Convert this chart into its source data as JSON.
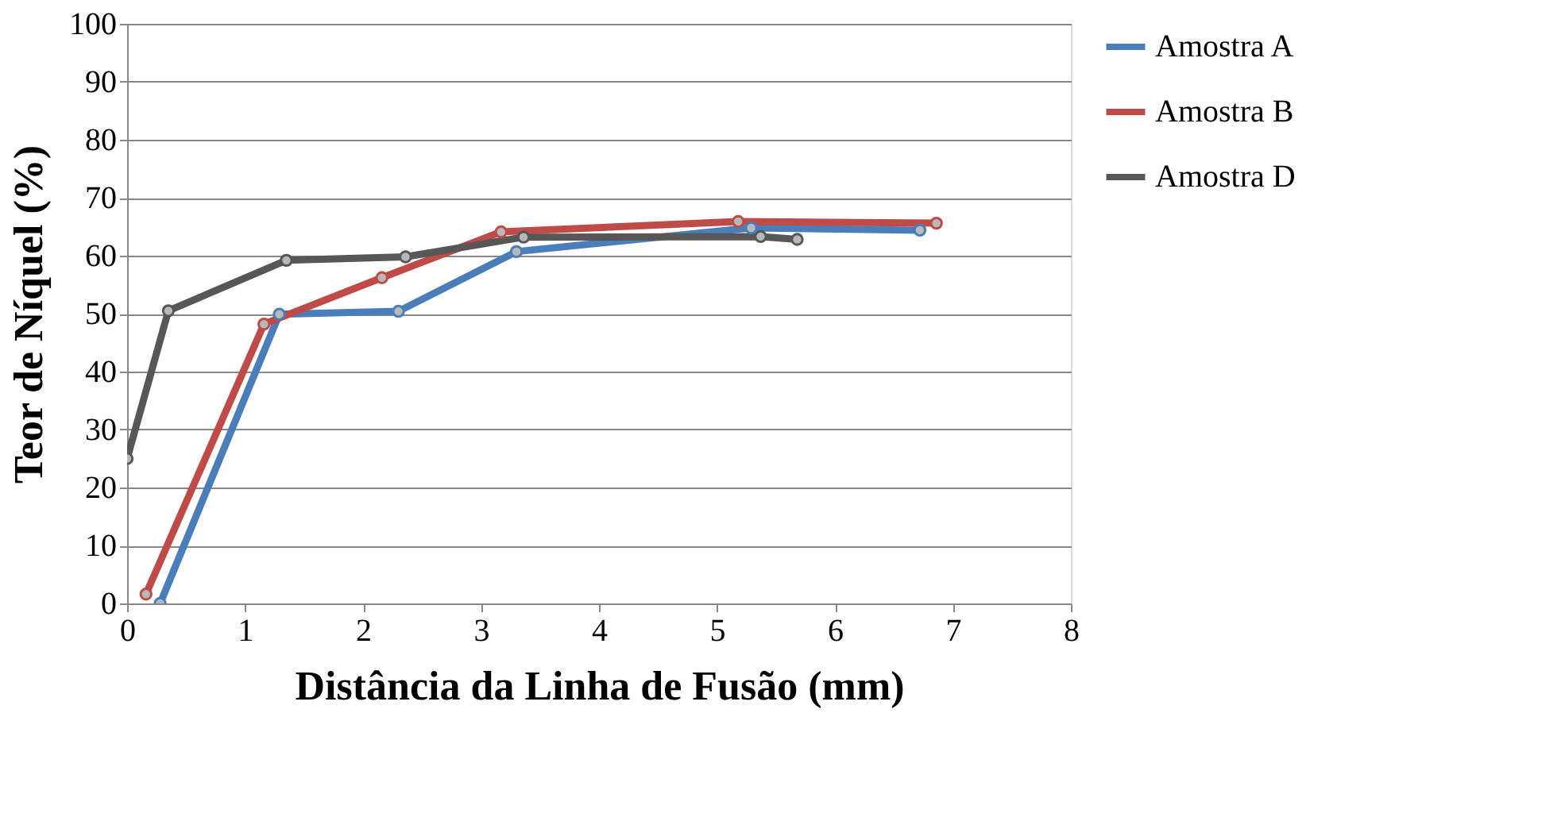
{
  "chart_data": {
    "type": "line",
    "xlabel": "Distância da Linha de Fusão (mm)",
    "ylabel": "Teor de Níquel (%)",
    "xlim": [
      0,
      8
    ],
    "xticks": [
      0,
      1,
      2,
      3,
      4,
      5,
      6,
      7,
      8
    ],
    "ylim": [
      0,
      100
    ],
    "yticks": [
      0,
      10,
      20,
      30,
      40,
      50,
      60,
      70,
      80,
      90,
      100
    ],
    "grid": "y",
    "legend": "right",
    "marker": "circle",
    "line_style": "solid",
    "series": [
      {
        "name": "Amostra A",
        "color": "#4a7ebb",
        "x": [
          0.28,
          1.29,
          2.3,
          3.3,
          5.29,
          6.72
        ],
        "values": [
          0,
          49.9,
          50.4,
          60.7,
          64.8,
          64.4
        ]
      },
      {
        "name": "Amostra B",
        "color": "#be4b48",
        "x": [
          0.16,
          1.16,
          2.16,
          3.17,
          5.18,
          6.86
        ],
        "values": [
          1.6,
          48.2,
          56.2,
          64.1,
          65.9,
          65.6
        ]
      },
      {
        "name": "Amostra D",
        "color": "#575757",
        "x": [
          0,
          0.35,
          1.35,
          2.36,
          3.36,
          5.37,
          5.68
        ],
        "values": [
          25,
          50.5,
          59.2,
          59.8,
          63.2,
          63.3,
          62.8
        ]
      }
    ]
  }
}
